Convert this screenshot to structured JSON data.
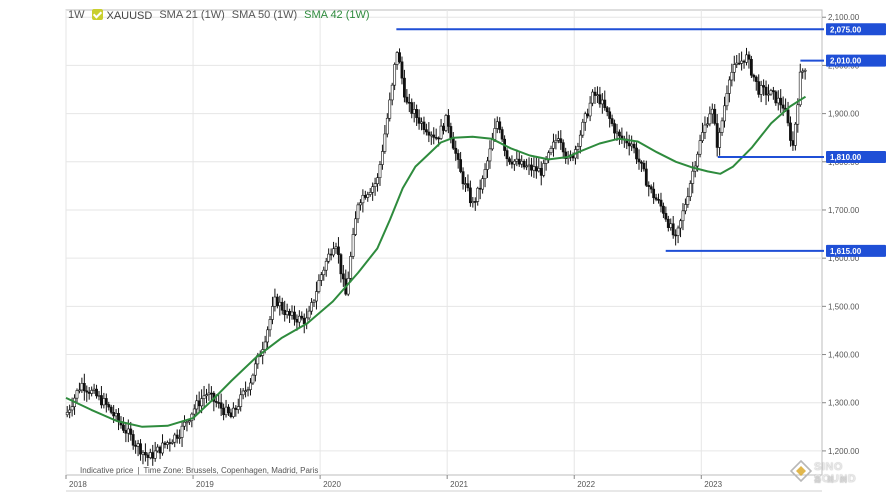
{
  "legend": {
    "timeframe": "1W",
    "symbol": "XAUUSD",
    "sma21": "SMA 21 (1W)",
    "sma50": "SMA 50 (1W)",
    "sma42": "SMA 42 (1W)"
  },
  "footnote": {
    "note": "Indicative price",
    "timezone": "Time Zone: Brussels, Copenhagen, Madrid, Paris"
  },
  "watermark": {
    "name": "SINO SOUND",
    "sub": "鑫 聲 網"
  },
  "colors": {
    "candle": "#111111",
    "sma": "#2e8b3d",
    "level": "#1f4fd6",
    "grid": "#e6e6e6"
  },
  "chart_data": {
    "type": "candlestick",
    "timeframe": "1W",
    "instrument": "XAUUSD",
    "ylim": [
      1150,
      2115
    ],
    "y_ticks": [
      1200,
      1300,
      1400,
      1500,
      1600,
      1700,
      1800,
      1900,
      2000,
      2100
    ],
    "y_tick_labels": [
      "1,200.00",
      "1,300.00",
      "1,400.00",
      "1,500.00",
      "1,600.00",
      "1,700.00",
      "1,800.00",
      "1,900.00",
      "2,000.00",
      "2,100.00"
    ],
    "x_range": [
      2018.0,
      2023.95
    ],
    "x_ticks": [
      2018,
      2019,
      2020,
      2021,
      2022,
      2023
    ],
    "price_path": [
      [
        2018.0,
        1275
      ],
      [
        2018.12,
        1340
      ],
      [
        2018.3,
        1300
      ],
      [
        2018.55,
        1215
      ],
      [
        2018.65,
        1185
      ],
      [
        2018.9,
        1240
      ],
      [
        2019.0,
        1285
      ],
      [
        2019.1,
        1320
      ],
      [
        2019.3,
        1270
      ],
      [
        2019.45,
        1345
      ],
      [
        2019.55,
        1420
      ],
      [
        2019.65,
        1515
      ],
      [
        2019.75,
        1480
      ],
      [
        2019.9,
        1470
      ],
      [
        2020.0,
        1560
      ],
      [
        2020.12,
        1640
      ],
      [
        2020.2,
        1520
      ],
      [
        2020.3,
        1720
      ],
      [
        2020.45,
        1760
      ],
      [
        2020.58,
        1975
      ],
      [
        2020.6,
        2040
      ],
      [
        2020.68,
        1920
      ],
      [
        2020.8,
        1880
      ],
      [
        2020.92,
        1850
      ],
      [
        2021.0,
        1890
      ],
      [
        2021.1,
        1780
      ],
      [
        2021.2,
        1710
      ],
      [
        2021.28,
        1760
      ],
      [
        2021.4,
        1890
      ],
      [
        2021.47,
        1810
      ],
      [
        2021.6,
        1790
      ],
      [
        2021.75,
        1780
      ],
      [
        2021.88,
        1860
      ],
      [
        2021.95,
        1800
      ],
      [
        2022.0,
        1820
      ],
      [
        2022.15,
        1940
      ],
      [
        2022.2,
        1930
      ],
      [
        2022.35,
        1850
      ],
      [
        2022.45,
        1840
      ],
      [
        2022.6,
        1740
      ],
      [
        2022.7,
        1700
      ],
      [
        2022.8,
        1635
      ],
      [
        2022.88,
        1720
      ],
      [
        2022.95,
        1800
      ],
      [
        2023.0,
        1850
      ],
      [
        2023.08,
        1915
      ],
      [
        2023.13,
        1830
      ],
      [
        2023.22,
        1980
      ],
      [
        2023.35,
        2020
      ],
      [
        2023.45,
        1950
      ],
      [
        2023.55,
        1940
      ],
      [
        2023.65,
        1915
      ],
      [
        2023.72,
        1830
      ],
      [
        2023.78,
        1980
      ],
      [
        2023.82,
        2000
      ]
    ],
    "sma_path": [
      [
        2018.0,
        1310
      ],
      [
        2018.2,
        1285
      ],
      [
        2018.4,
        1262
      ],
      [
        2018.6,
        1250
      ],
      [
        2018.8,
        1252
      ],
      [
        2019.0,
        1268
      ],
      [
        2019.15,
        1305
      ],
      [
        2019.3,
        1345
      ],
      [
        2019.5,
        1395
      ],
      [
        2019.7,
        1435
      ],
      [
        2019.9,
        1465
      ],
      [
        2020.1,
        1510
      ],
      [
        2020.3,
        1570
      ],
      [
        2020.45,
        1620
      ],
      [
        2020.55,
        1680
      ],
      [
        2020.65,
        1745
      ],
      [
        2020.75,
        1790
      ],
      [
        2020.85,
        1815
      ],
      [
        2020.95,
        1840
      ],
      [
        2021.05,
        1850
      ],
      [
        2021.2,
        1852
      ],
      [
        2021.35,
        1848
      ],
      [
        2021.5,
        1828
      ],
      [
        2021.65,
        1813
      ],
      [
        2021.8,
        1805
      ],
      [
        2021.95,
        1810
      ],
      [
        2022.05,
        1822
      ],
      [
        2022.2,
        1838
      ],
      [
        2022.35,
        1848
      ],
      [
        2022.5,
        1842
      ],
      [
        2022.65,
        1820
      ],
      [
        2022.8,
        1800
      ],
      [
        2022.92,
        1789
      ],
      [
        2023.05,
        1780
      ],
      [
        2023.15,
        1775
      ],
      [
        2023.25,
        1790
      ],
      [
        2023.4,
        1830
      ],
      [
        2023.55,
        1880
      ],
      [
        2023.7,
        1915
      ],
      [
        2023.82,
        1935
      ]
    ],
    "levels": [
      {
        "label": "2,075.00",
        "value": 2075,
        "x_start": 2020.6
      },
      {
        "label": "2,010.00",
        "value": 2010,
        "x_start": 2023.78
      },
      {
        "label": "1,810.00",
        "value": 1810,
        "x_start": 2023.13
      },
      {
        "label": "1,615.00",
        "value": 1615,
        "x_start": 2022.72
      }
    ],
    "series": [
      {
        "name": "XAUUSD",
        "kind": "candles"
      },
      {
        "name": "SMA 42 (1W)",
        "kind": "line"
      }
    ],
    "grid": true,
    "legend_position": "top-left"
  }
}
